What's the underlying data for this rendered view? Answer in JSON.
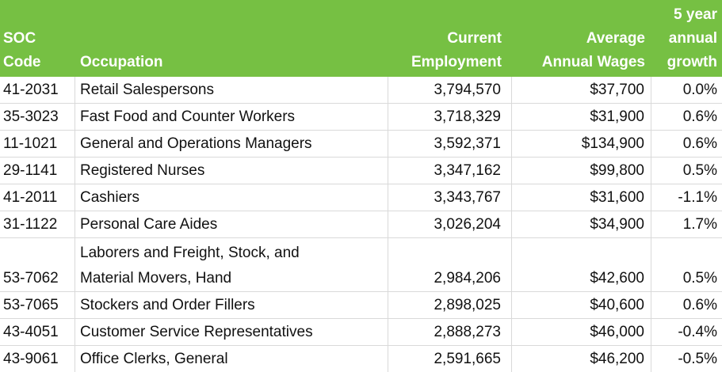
{
  "colors": {
    "header_bg": "#76C043",
    "header_text": "#FFFFFF",
    "grid_line": "#D9D9D9",
    "body_text": "#111111",
    "row_bg": "#FFFFFF"
  },
  "chart_data": {
    "type": "table",
    "title": "",
    "columns": [
      {
        "id": "soc-code",
        "label": "SOC\nCode",
        "align": "left"
      },
      {
        "id": "occupation",
        "label": "Occupation",
        "align": "left"
      },
      {
        "id": "employment",
        "label": "Current\nEmployment",
        "align": "right"
      },
      {
        "id": "wages",
        "label": "Average\nAnnual Wages",
        "align": "right"
      },
      {
        "id": "growth",
        "label": "5 year\nannual\ngrowth",
        "align": "right"
      }
    ],
    "rows": [
      [
        "41-2031",
        "Retail Salespersons",
        "3,794,570",
        "$37,700",
        "0.0%"
      ],
      [
        "35-3023",
        "Fast Food and Counter Workers",
        "3,718,329",
        "$31,900",
        "0.6%"
      ],
      [
        "11-1021",
        "General and Operations Managers",
        "3,592,371",
        "$134,900",
        "0.6%"
      ],
      [
        "29-1141",
        "Registered Nurses",
        "3,347,162",
        "$99,800",
        "0.5%"
      ],
      [
        "41-2011",
        "Cashiers",
        "3,343,767",
        "$31,600",
        "-1.1%"
      ],
      [
        "31-1122",
        "Personal Care Aides",
        "3,026,204",
        "$34,900",
        "1.7%"
      ],
      [
        "53-7062",
        "Laborers and Freight, Stock, and\nMaterial Movers, Hand",
        "2,984,206",
        "$42,600",
        "0.5%"
      ],
      [
        "53-7065",
        "Stockers and Order Fillers",
        "2,898,025",
        "$40,600",
        "0.6%"
      ],
      [
        "43-4051",
        "Customer Service Representatives",
        "2,888,273",
        "$46,000",
        "-0.4%"
      ],
      [
        "43-9061",
        "Office Clerks, General",
        "2,591,665",
        "$46,200",
        "-0.5%"
      ]
    ]
  }
}
